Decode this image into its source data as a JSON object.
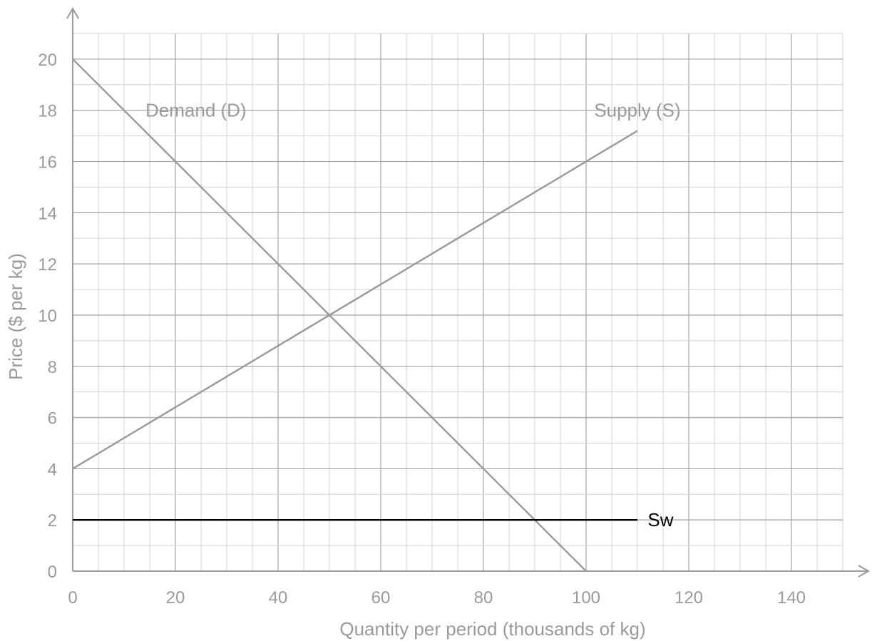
{
  "chart_data": {
    "type": "line",
    "title": "",
    "xlabel": "Quantity per period (thousands of kg)",
    "ylabel": "Price ($ per kg)",
    "xlim": [
      0,
      150
    ],
    "ylim": [
      0,
      21
    ],
    "x_ticks": [
      "0",
      "20",
      "40",
      "60",
      "80",
      "100",
      "120",
      "140"
    ],
    "y_ticks": [
      "0",
      "2",
      "4",
      "6",
      "8",
      "10",
      "12",
      "14",
      "16",
      "18",
      "20"
    ],
    "grid": true,
    "minor_grid_x_step": 5,
    "minor_grid_y_step": 1,
    "series": [
      {
        "name": "Demand (D)",
        "color": "#9a9a9a",
        "label_at": [
          24,
          18
        ],
        "points": [
          [
            0,
            20
          ],
          [
            100,
            0
          ]
        ]
      },
      {
        "name": "Supply (S)",
        "color": "#9a9a9a",
        "label_at": [
          110,
          18
        ],
        "points": [
          [
            0,
            4
          ],
          [
            110,
            17.2
          ]
        ]
      },
      {
        "name": "Sw",
        "color": "#000000",
        "label_at": [
          112,
          2
        ],
        "points": [
          [
            0,
            2
          ],
          [
            110,
            2
          ]
        ]
      }
    ]
  }
}
